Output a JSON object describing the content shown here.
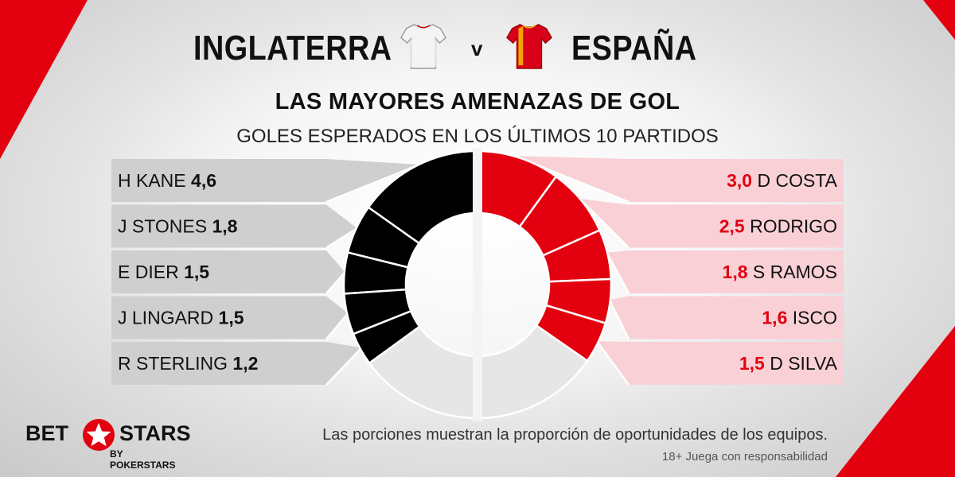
{
  "header": {
    "home_team": "INGLATERRA",
    "versus": "v",
    "away_team": "ESPAÑA"
  },
  "chart_data": {
    "type": "pie",
    "title": "LAS MAYORES AMENAZAS DE GOL",
    "subtitle": "GOLES ESPERADOS EN LOS ÚLTIMOS 10 PARTIDOS",
    "series": [
      {
        "name": "INGLATERRA",
        "color": "#000000",
        "label_bg": "#cfcfcf",
        "remainder_color": "#e6e6e6",
        "players": [
          {
            "name": "H KANE",
            "value": 4.6,
            "value_label": "4,6"
          },
          {
            "name": "J STONES",
            "value": 1.8,
            "value_label": "1,8"
          },
          {
            "name": "E DIER",
            "value": 1.5,
            "value_label": "1,5"
          },
          {
            "name": "J LINGARD",
            "value": 1.5,
            "value_label": "1,5"
          },
          {
            "name": "R STERLING",
            "value": 1.2,
            "value_label": "1,2"
          }
        ]
      },
      {
        "name": "ESPAÑA",
        "color": "#e3000f",
        "label_bg": "#f9d0d6",
        "remainder_color": "#e6e6e6",
        "players": [
          {
            "name": "D COSTA",
            "value": 3.0,
            "value_label": "3,0"
          },
          {
            "name": "RODRIGO",
            "value": 2.5,
            "value_label": "2,5"
          },
          {
            "name": "S RAMOS",
            "value": 1.8,
            "value_label": "1,8"
          },
          {
            "name": "ISCO",
            "value": 1.6,
            "value_label": "1,6"
          },
          {
            "name": "D SILVA",
            "value": 1.5,
            "value_label": "1,5"
          }
        ]
      }
    ]
  },
  "footer": {
    "brand_left": "BET",
    "brand_right": "STARS",
    "brand_sub": "BY POKERSTARS",
    "note": "Las porciones muestran la proporción de oportunidades de los equipos.",
    "disclaimer": "18+ Juega con responsabilidad"
  },
  "colors": {
    "accent": "#e3000f",
    "text": "#111111"
  }
}
